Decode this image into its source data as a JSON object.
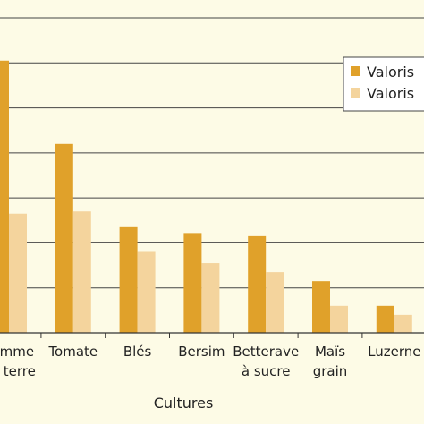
{
  "chart_data": {
    "type": "bar",
    "xlabel": "Cultures",
    "ylabel": "",
    "title": "",
    "ylim": [
      0,
      14
    ],
    "grid": true,
    "legend_position": "top-right",
    "categories": [
      [
        "Pomme",
        "de terre"
      ],
      [
        "Tomate"
      ],
      [
        "Blés"
      ],
      [
        "Bersim"
      ],
      [
        "Betterave",
        "à sucre"
      ],
      [
        "Maïs",
        "grain"
      ],
      [
        "Luzerne"
      ]
    ],
    "series": [
      {
        "name": "Valoris",
        "color": "#e0a12a",
        "values": [
          12.1,
          8.4,
          4.7,
          4.4,
          4.3,
          2.3,
          1.2
        ]
      },
      {
        "name": "Valoris",
        "color": "#f4d49d",
        "values": [
          5.3,
          5.4,
          3.6,
          3.1,
          2.7,
          1.2,
          0.8
        ]
      }
    ]
  }
}
